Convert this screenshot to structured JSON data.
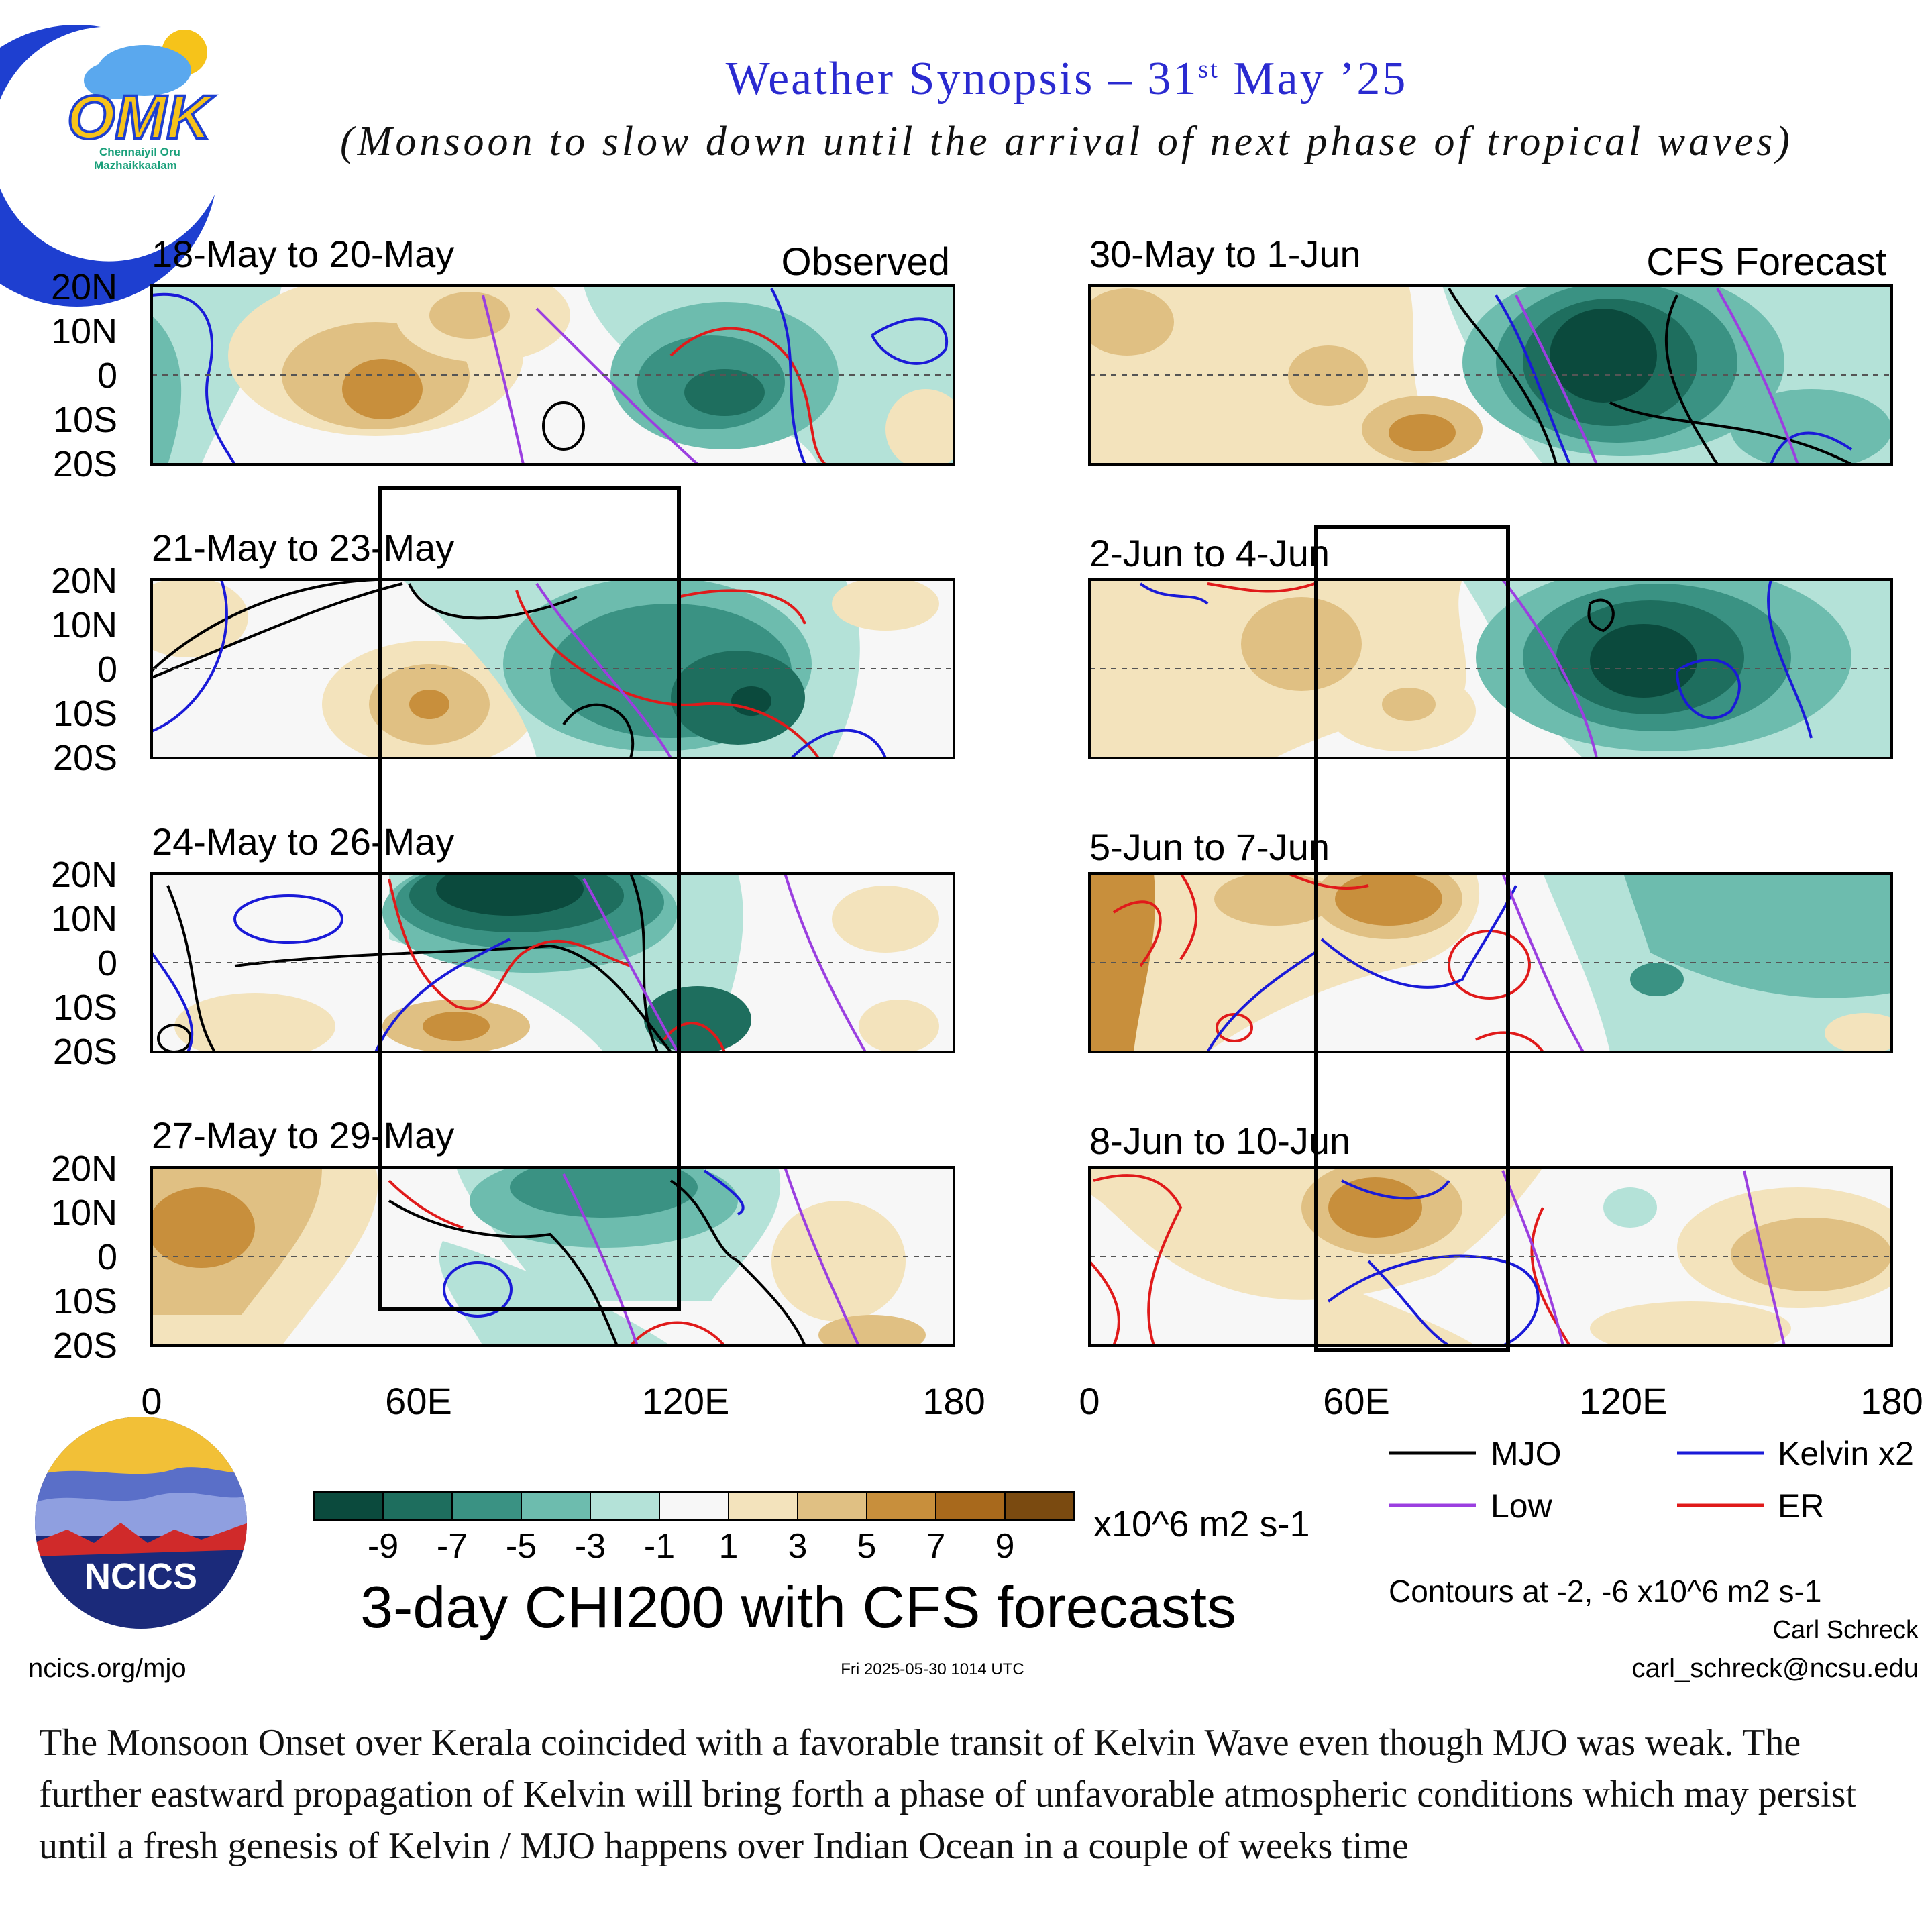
{
  "header": {
    "title_pre": "Weather Synopsis – 31",
    "title_sup": "st",
    "title_post": " May ’25",
    "subtitle": "(Monsoon to slow down until the arrival of  next phase of  tropical waves)",
    "logo_text": "OMK",
    "logo_sub1": "Chennaiyil Oru",
    "logo_sub2": "Mazhaikkaalam"
  },
  "headers": {
    "observed": "Observed",
    "forecast": "CFS Forecast"
  },
  "lat_labels": [
    "20N",
    "10N",
    "0",
    "10S",
    "20S"
  ],
  "lon_labels": [
    "0",
    "60E",
    "120E",
    "180"
  ],
  "panels_left": [
    {
      "label": "18-May to 20-May"
    },
    {
      "label": "21-May to 23-May"
    },
    {
      "label": "24-May to 26-May"
    },
    {
      "label": "27-May to 29-May"
    }
  ],
  "panels_right": [
    {
      "label": "30-May to 1-Jun"
    },
    {
      "label": "2-Jun to 4-Jun"
    },
    {
      "label": "5-Jun to 7-Jun"
    },
    {
      "label": "8-Jun to 10-Jun"
    }
  ],
  "colorbar": {
    "ticks": [
      "-9",
      "-7",
      "-5",
      "-3",
      "-1",
      "1",
      "3",
      "5",
      "7",
      "9"
    ],
    "unit": "x10^6 m2 s-1",
    "colors": [
      "#0b4a3d",
      "#1e6e5e",
      "#3a9283",
      "#6dbcae",
      "#b4e2d8",
      "#f7f7f7",
      "#f3e3bc",
      "#e0c083",
      "#c88f3c",
      "#a8691c",
      "#7a4a10"
    ]
  },
  "legend": [
    {
      "label": "MJO",
      "color": "#000000"
    },
    {
      "label": "Kelvin x2",
      "color": "#1a1ad8"
    },
    {
      "label": "Low",
      "color": "#9b3fe0"
    },
    {
      "label": "ER",
      "color": "#e01a1a"
    }
  ],
  "main_title": "3-day CHI200 with CFS forecasts",
  "contours_note": "Contours at -2, -6 x10^6 m2 s-1",
  "author": "Carl Schreck",
  "email": "carl_schreck@ncsu.edu",
  "site": "ncics.org/mjo",
  "timestamp": "Fri 2025-05-30 1014 UTC",
  "ncics_label": "NCICS",
  "caption": "The Monsoon Onset over Kerala coincided with a favorable transit of  Kelvin Wave even though MJO was weak.  The further eastward propagation of  Kelvin will bring forth a phase of  unfavorable atmospheric conditions which may persist until a fresh genesis of  Kelvin / MJO happens over Indian Ocean in a couple of  weeks time"
}
